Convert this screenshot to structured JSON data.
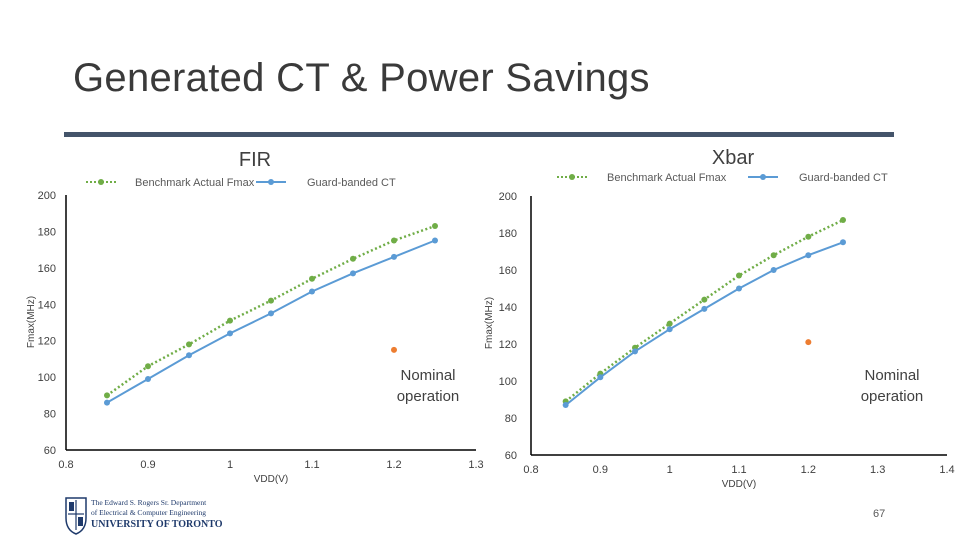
{
  "slide": {
    "title": "Generated CT & Power Savings",
    "page_number": "67"
  },
  "logo": {
    "line1": "The Edward S. Rogers Sr. Department",
    "line2": "of Electrical & Computer Engineering",
    "line3": "UNIVERSITY OF TORONTO"
  },
  "colors": {
    "benchmark": "#70ad47",
    "guardbanded": "#5b9bd5",
    "nominal": "#ed7d31",
    "axis": "#000000",
    "title_rule": "#44546a"
  },
  "chart_data": [
    {
      "id": "fir",
      "type": "line",
      "title": "FIR",
      "xlabel": "VDD(V)",
      "ylabel": "Fmax(MHz)",
      "xlim": [
        0.8,
        1.3
      ],
      "ylim": [
        60,
        200
      ],
      "xticks": [
        "0.8",
        "0.9",
        "1",
        "1.1",
        "1.2",
        "1.3"
      ],
      "yticks": [
        "60",
        "80",
        "100",
        "120",
        "140",
        "160",
        "180",
        "200"
      ],
      "grid": false,
      "legend": "top",
      "series": [
        {
          "name": "Benchmark Actual Fmax",
          "style": "dotted",
          "x": [
            0.85,
            0.9,
            0.95,
            1.0,
            1.05,
            1.1,
            1.15,
            1.2,
            1.25
          ],
          "y": [
            90,
            106,
            118,
            131,
            142,
            154,
            165,
            175,
            183
          ]
        },
        {
          "name": "Guard-banded CT",
          "style": "solid",
          "x": [
            0.85,
            0.9,
            0.95,
            1.0,
            1.05,
            1.1,
            1.15,
            1.2,
            1.25
          ],
          "y": [
            86,
            99,
            112,
            124,
            135,
            147,
            157,
            166,
            175
          ]
        }
      ],
      "nominal_point": {
        "x": 1.2,
        "y": 115
      },
      "annotation": [
        "Nominal",
        "operation"
      ]
    },
    {
      "id": "xbar",
      "type": "line",
      "title": "Xbar",
      "xlabel": "VDD(V)",
      "ylabel": "Fmax(MHz)",
      "xlim": [
        0.8,
        1.4
      ],
      "ylim": [
        60,
        200
      ],
      "xticks": [
        "0.8",
        "0.9",
        "1",
        "1.1",
        "1.2",
        "1.3",
        "1.4"
      ],
      "yticks": [
        "60",
        "80",
        "100",
        "120",
        "140",
        "160",
        "180",
        "200"
      ],
      "grid": false,
      "legend": "top",
      "series": [
        {
          "name": "Benchmark Actual Fmax",
          "style": "dotted",
          "x": [
            0.85,
            0.9,
            0.95,
            1.0,
            1.05,
            1.1,
            1.15,
            1.2,
            1.25
          ],
          "y": [
            89,
            104,
            118,
            131,
            144,
            157,
            168,
            178,
            187
          ]
        },
        {
          "name": "Guard-banded CT",
          "style": "solid",
          "x": [
            0.85,
            0.9,
            0.95,
            1.0,
            1.05,
            1.1,
            1.15,
            1.2,
            1.25
          ],
          "y": [
            87,
            102,
            116,
            128,
            139,
            150,
            160,
            168,
            175
          ]
        }
      ],
      "nominal_point": {
        "x": 1.2,
        "y": 121
      },
      "annotation": [
        "Nominal",
        "operation"
      ]
    }
  ]
}
